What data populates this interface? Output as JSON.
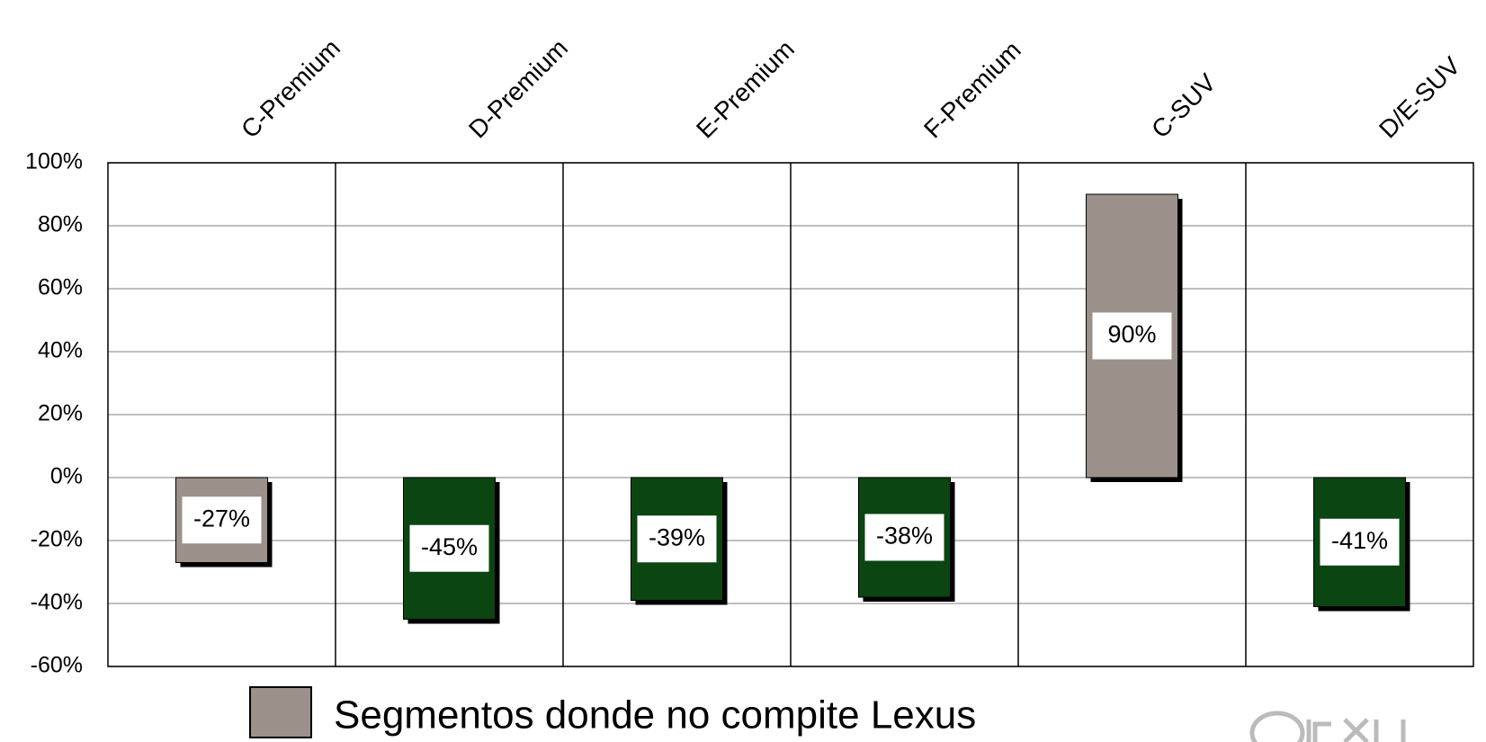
{
  "chart_data": {
    "type": "bar",
    "categories": [
      "C-Premium",
      "D-Premium",
      "E-Premium",
      "F-Premium",
      "C-SUV",
      "D/E-SUV"
    ],
    "values": [
      -27,
      -45,
      -39,
      -38,
      90,
      -41
    ],
    "value_labels": [
      "-27%",
      "-45%",
      "-39%",
      "-38%",
      "90%",
      "-41%"
    ],
    "colors": [
      "#9b918a",
      "#0b4512",
      "#0b4512",
      "#0b4512",
      "#9b918a",
      "#0b4512"
    ],
    "ylim": [
      -60,
      100
    ],
    "yticks": [
      {
        "value": -60,
        "label": "-60%"
      },
      {
        "value": -40,
        "label": "-40%"
      },
      {
        "value": -20,
        "label": "-20%"
      },
      {
        "value": 0,
        "label": "0%"
      },
      {
        "value": 20,
        "label": "20%"
      },
      {
        "value": 40,
        "label": "40%"
      },
      {
        "value": 60,
        "label": "60%"
      },
      {
        "value": 80,
        "label": "80%"
      },
      {
        "value": 100,
        "label": "100%"
      }
    ],
    "grid": true,
    "legend": [
      {
        "name": "Segmentos donde no compite Lexus",
        "color": "#9b918a"
      }
    ]
  }
}
